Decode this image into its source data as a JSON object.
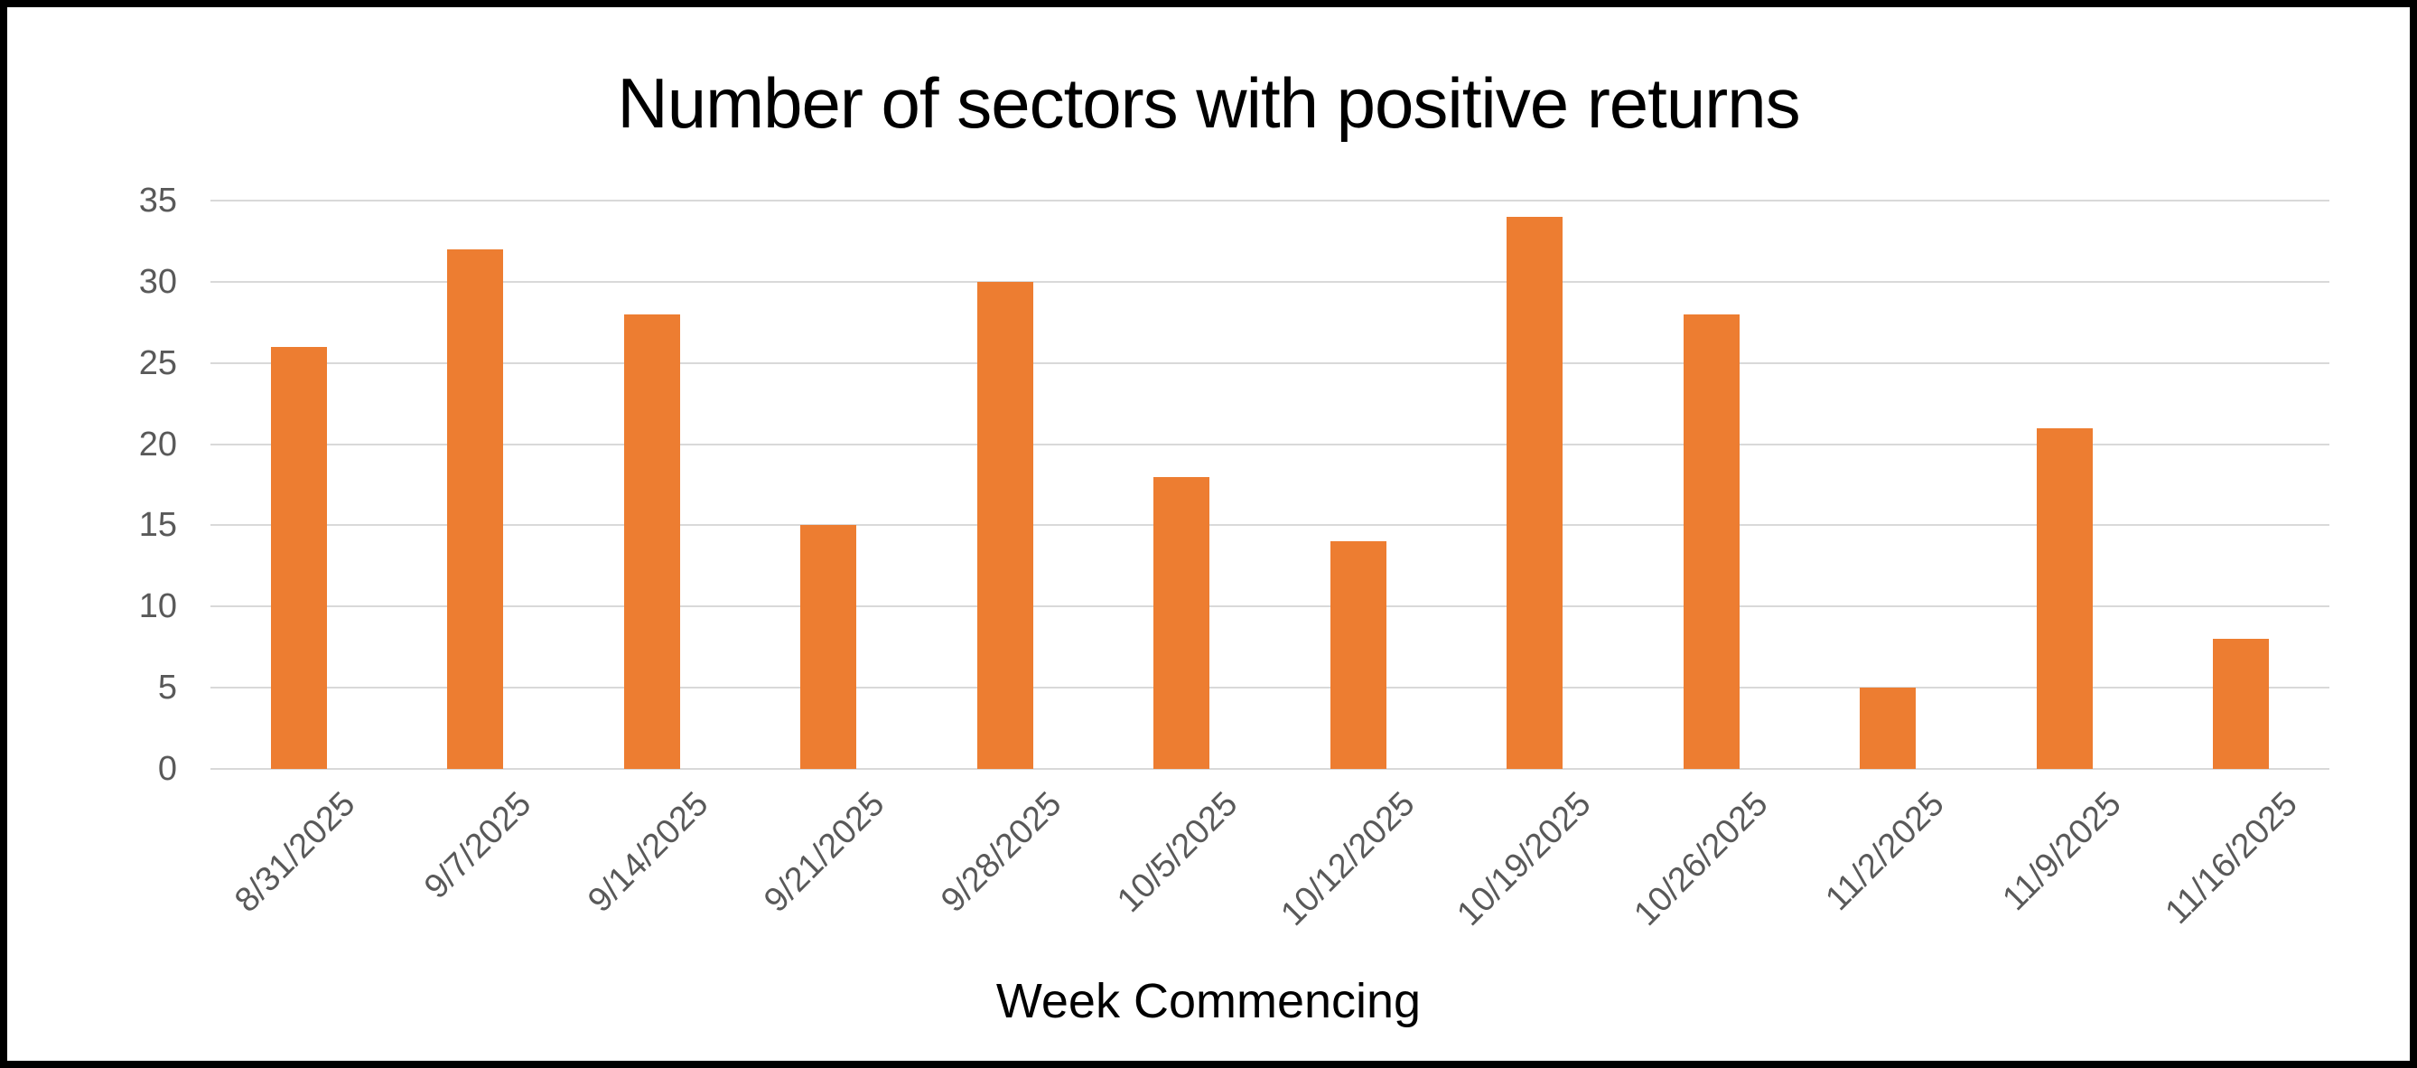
{
  "chart_data": {
    "type": "bar",
    "title": "Number of sectors with positive returns",
    "xlabel": "Week Commencing",
    "ylabel": "",
    "categories": [
      "8/31/2025",
      "9/7/2025",
      "9/14/2025",
      "9/21/2025",
      "9/28/2025",
      "10/5/2025",
      "10/12/2025",
      "10/19/2025",
      "10/26/2025",
      "11/2/2025",
      "11/9/2025",
      "11/16/2025"
    ],
    "values": [
      26,
      32,
      28,
      15,
      30,
      18,
      14,
      34,
      28,
      5,
      21,
      8
    ],
    "ylim": [
      0,
      35
    ],
    "ytick_step": 5,
    "yticks": [
      0,
      5,
      10,
      15,
      20,
      25,
      30,
      35
    ],
    "grid": "horizontal",
    "legend": "none",
    "x_tick_rotation_deg": 45,
    "colors": {
      "bar": "#ED7D31",
      "gridline": "#D9D9D9",
      "tick_label": "#595959",
      "title": "#000000",
      "frame_border": "#000000",
      "background": "#FFFFFF"
    }
  }
}
